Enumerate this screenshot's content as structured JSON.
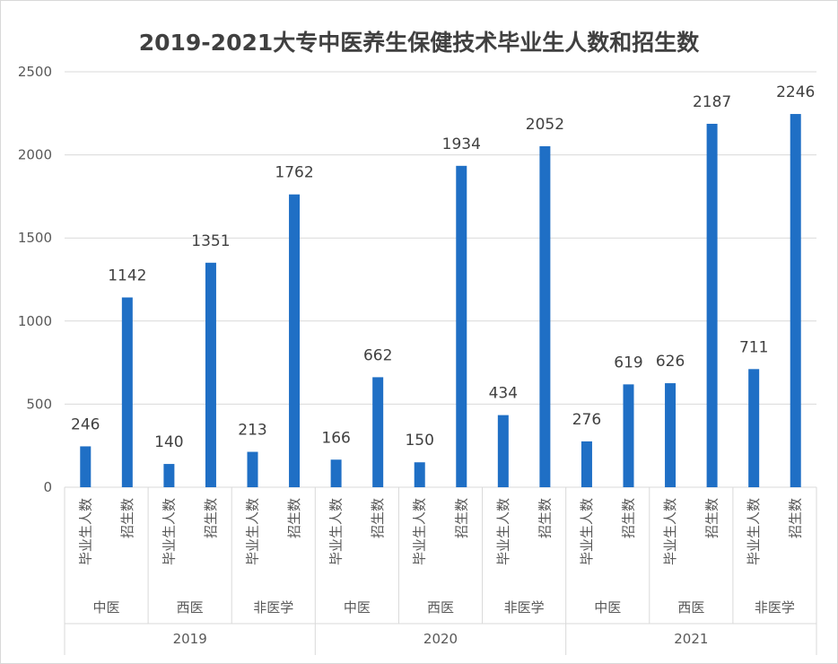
{
  "chart_data": {
    "type": "bar",
    "title": "2019-2021大专中医养生保健技术毕业生人数和招生数",
    "xlabel": "",
    "ylabel": "",
    "ylim": [
      0,
      2500
    ],
    "yticks": [
      0,
      500,
      1000,
      1500,
      2000,
      2500
    ],
    "grid": true,
    "color": "#1f6fc5",
    "groups": [
      {
        "year": "2019",
        "subgroups": [
          {
            "name": "中医",
            "bars": [
              {
                "label": "毕业生人数",
                "value": 246
              },
              {
                "label": "招生数",
                "value": 1142
              }
            ]
          },
          {
            "name": "西医",
            "bars": [
              {
                "label": "毕业生人数",
                "value": 140
              },
              {
                "label": "招生数",
                "value": 1351
              }
            ]
          },
          {
            "name": "非医学",
            "bars": [
              {
                "label": "毕业生人数",
                "value": 213
              },
              {
                "label": "招生数",
                "value": 1762
              }
            ]
          }
        ]
      },
      {
        "year": "2020",
        "subgroups": [
          {
            "name": "中医",
            "bars": [
              {
                "label": "毕业生人数",
                "value": 166
              },
              {
                "label": "招生数",
                "value": 662
              }
            ]
          },
          {
            "name": "西医",
            "bars": [
              {
                "label": "毕业生人数",
                "value": 150
              },
              {
                "label": "招生数",
                "value": 1934
              }
            ]
          },
          {
            "name": "非医学",
            "bars": [
              {
                "label": "毕业生人数",
                "value": 434
              },
              {
                "label": "招生数",
                "value": 2052
              }
            ]
          }
        ]
      },
      {
        "year": "2021",
        "subgroups": [
          {
            "name": "中医",
            "bars": [
              {
                "label": "毕业生人数",
                "value": 276
              },
              {
                "label": "招生数",
                "value": 619
              }
            ]
          },
          {
            "name": "西医",
            "bars": [
              {
                "label": "毕业生人数",
                "value": 626
              },
              {
                "label": "招生数",
                "value": 2187
              }
            ]
          },
          {
            "name": "非医学",
            "bars": [
              {
                "label": "毕业生人数",
                "value": 711
              },
              {
                "label": "招生数",
                "value": 2246
              }
            ]
          }
        ]
      }
    ]
  }
}
